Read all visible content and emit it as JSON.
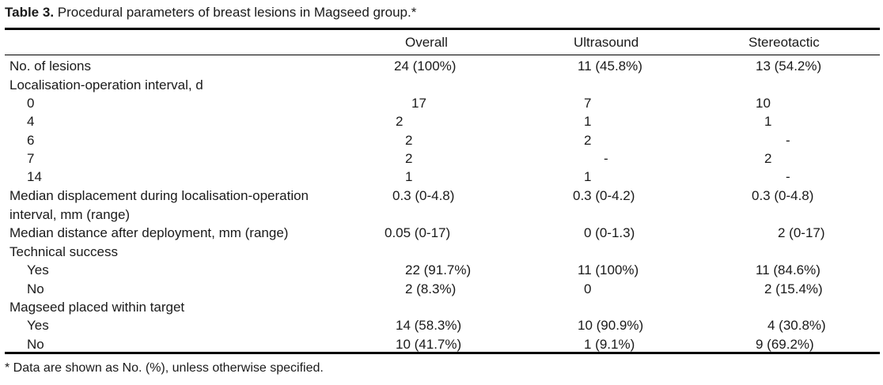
{
  "caption": {
    "label": "Table 3.",
    "text": " Procedural parameters of breast lesions in Magseed group.*"
  },
  "columns": [
    "Overall",
    "Ultrasound",
    "Stereotactic"
  ],
  "rows": [
    {
      "label": "No. of lesions",
      "indent": 0,
      "values": [
        "24 (100%)",
        "11 (45.8%)",
        "13 (54.2%)"
      ]
    },
    {
      "label": "Localisation-operation interval, d",
      "indent": 0,
      "values": [
        "",
        "",
        ""
      ]
    },
    {
      "label": "0",
      "indent": 1,
      "values": [
        "17",
        "7",
        "10"
      ]
    },
    {
      "label": "4",
      "indent": 1,
      "values": [
        "2",
        "1",
        "1"
      ]
    },
    {
      "label": "6",
      "indent": 1,
      "values": [
        "2",
        "2",
        "-"
      ]
    },
    {
      "label": "7",
      "indent": 1,
      "values": [
        "2",
        "-",
        "2"
      ]
    },
    {
      "label": "14",
      "indent": 1,
      "values": [
        "1",
        "1",
        "-"
      ]
    },
    {
      "label": "Median displacement during localisation-operation",
      "label2": "interval, mm (range)",
      "indent": 0,
      "values": [
        "0.3 (0-4.8)",
        "0.3 (0-4.2)",
        "0.3 (0-4.8)"
      ]
    },
    {
      "label": "Median distance after deployment, mm (range)",
      "indent": 0,
      "values": [
        "0.05 (0-17)",
        "0 (0-1.3)",
        "2 (0-17)"
      ]
    },
    {
      "label": "Technical success",
      "indent": 0,
      "values": [
        "",
        "",
        ""
      ]
    },
    {
      "label": "Yes",
      "indent": 1,
      "values": [
        "22 (91.7%)",
        "11 (100%)",
        "11 (84.6%)"
      ]
    },
    {
      "label": "No",
      "indent": 1,
      "values": [
        "2 (8.3%)",
        "0",
        "2 (15.4%)"
      ]
    },
    {
      "label": "Magseed placed within target",
      "indent": 0,
      "values": [
        "",
        "",
        ""
      ]
    },
    {
      "label": "Yes",
      "indent": 1,
      "values": [
        "14 (58.3%)",
        "10 (90.9%)",
        "4 (30.8%)"
      ]
    },
    {
      "label": "No",
      "indent": 1,
      "values": [
        "10 (41.7%)",
        "1 (9.1%)",
        "9 (69.2%)"
      ]
    }
  ],
  "footnote": "* Data are shown as No. (%), unless otherwise specified."
}
